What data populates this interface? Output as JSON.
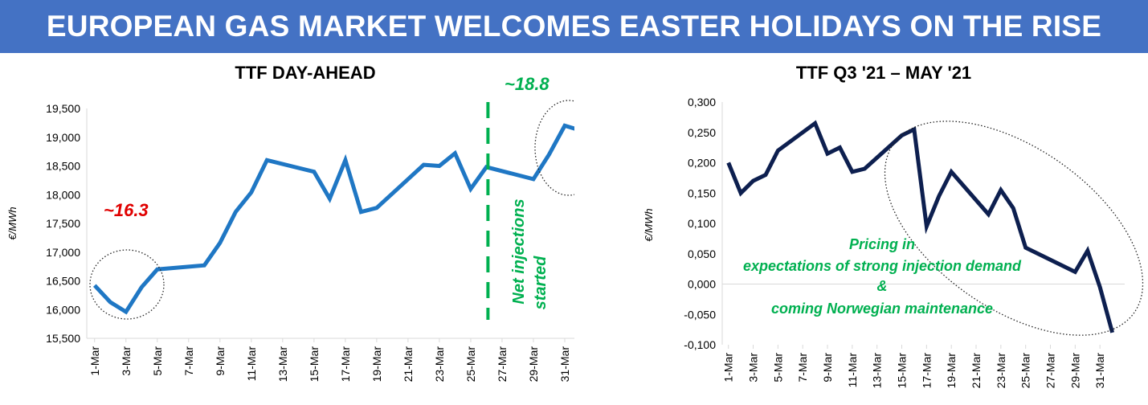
{
  "slide_title": "EUROPEAN GAS MARKET WELCOMES EASTER HOLIDAYS ON THE RISE",
  "colors": {
    "banner": "#4472c4",
    "left_line": "#1f77c4",
    "right_line": "#0d1f4f",
    "green": "#00b050",
    "red": "#e00000"
  },
  "chart_data": [
    {
      "type": "line",
      "title": "TTF DAY-AHEAD",
      "ylabel": "€/MWh",
      "ylim": [
        15500,
        19500
      ],
      "ytick_labels": [
        "15,500",
        "16,000",
        "16,500",
        "17,000",
        "17,500",
        "18,000",
        "18,500",
        "19,000",
        "19,500"
      ],
      "xtick_labels": [
        "1-Mar",
        "3-Mar",
        "5-Mar",
        "7-Mar",
        "9-Mar",
        "11-Mar",
        "13-Mar",
        "15-Mar",
        "17-Mar",
        "19-Mar",
        "21-Mar",
        "23-Mar",
        "25-Mar",
        "27-Mar",
        "29-Mar",
        "31-Mar"
      ],
      "series": [
        {
          "x": [
            1,
            2,
            3,
            4,
            5,
            8,
            9,
            10,
            11,
            12,
            15,
            16,
            17,
            18,
            19,
            22,
            23,
            24,
            25,
            26,
            29,
            30,
            31,
            32
          ],
          "values": [
            16420,
            16130,
            15960,
            16390,
            16700,
            16770,
            17160,
            17700,
            18040,
            18600,
            18400,
            17930,
            18600,
            17700,
            17770,
            18520,
            18500,
            18720,
            18100,
            18480,
            18270,
            18700,
            19200,
            19120
          ]
        }
      ],
      "annotations": {
        "low_label": "~16.3",
        "high_label": "~18.8",
        "vertical_line_label": [
          "Net injections",
          "started"
        ]
      }
    },
    {
      "type": "line",
      "title": "TTF Q3 '21 – MAY '21",
      "ylabel": "€/MWh",
      "ylim": [
        -0.1,
        0.3
      ],
      "ytick_labels": [
        "-0,100",
        "-0,050",
        "0,000",
        "0,050",
        "0,100",
        "0,150",
        "0,200",
        "0,250",
        "0,300"
      ],
      "xtick_labels": [
        "1-Mar",
        "3-Mar",
        "5-Mar",
        "7-Mar",
        "9-Mar",
        "11-Mar",
        "13-Mar",
        "15-Mar",
        "17-Mar",
        "19-Mar",
        "21-Mar",
        "23-Mar",
        "25-Mar",
        "27-Mar",
        "29-Mar",
        "31-Mar"
      ],
      "series": [
        {
          "x": [
            1,
            2,
            3,
            4,
            5,
            8,
            9,
            10,
            11,
            12,
            15,
            16,
            17,
            18,
            19,
            22,
            23,
            24,
            25,
            26,
            29,
            30,
            31,
            32
          ],
          "values": [
            0.2,
            0.15,
            0.17,
            0.18,
            0.22,
            0.265,
            0.215,
            0.225,
            0.185,
            0.19,
            0.245,
            0.255,
            0.095,
            0.145,
            0.185,
            0.115,
            0.155,
            0.125,
            0.06,
            0.05,
            0.02,
            0.055,
            -0.005,
            -0.08
          ]
        }
      ],
      "annotations": {
        "text_lines": [
          "Pricing in",
          "expectations of strong injection demand",
          "&",
          "coming Norwegian maintenance"
        ]
      }
    }
  ]
}
